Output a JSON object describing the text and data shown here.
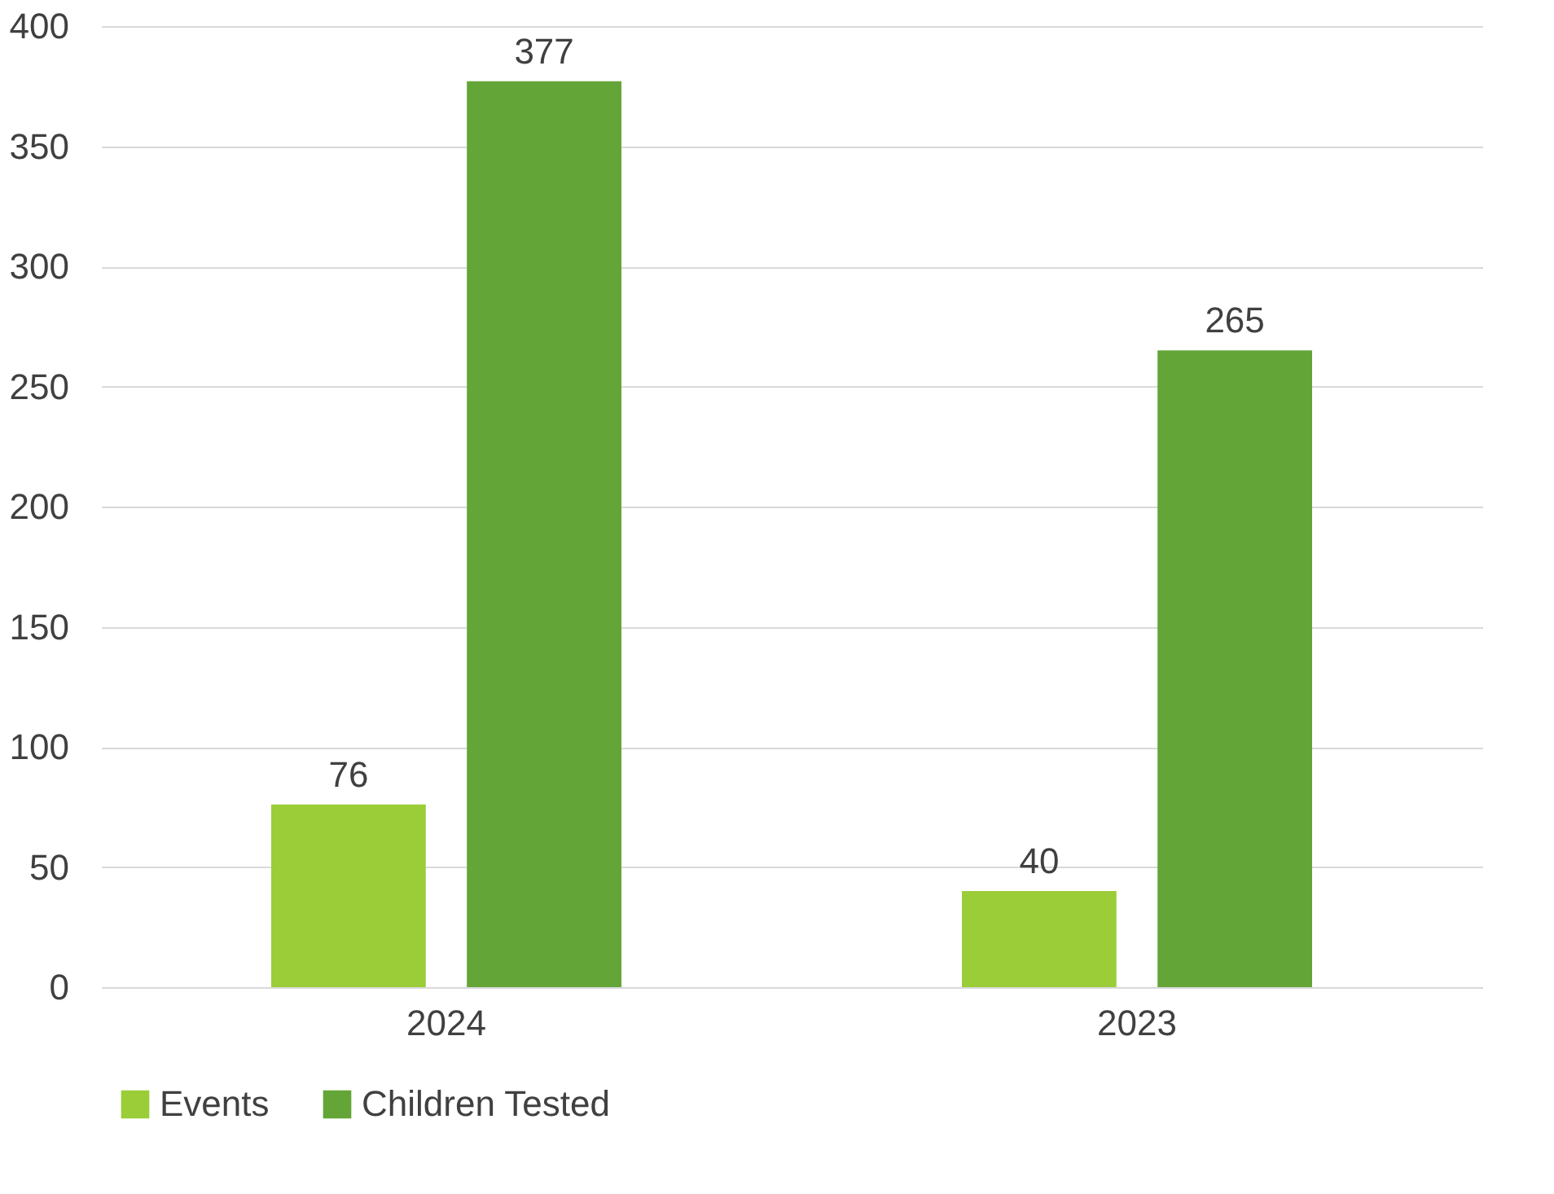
{
  "chart_data": {
    "type": "bar",
    "categories": [
      "2024",
      "2023"
    ],
    "series": [
      {
        "name": "Events",
        "color": "#9acd38",
        "values": [
          76,
          40
        ]
      },
      {
        "name": "Children Tested",
        "color": "#63a537",
        "values": [
          377,
          265
        ]
      }
    ],
    "ylim": [
      0,
      400
    ],
    "yticks": [
      0,
      50,
      100,
      150,
      200,
      250,
      300,
      350,
      400
    ],
    "grid": "y",
    "legend": "bottom",
    "data_labels": true
  }
}
